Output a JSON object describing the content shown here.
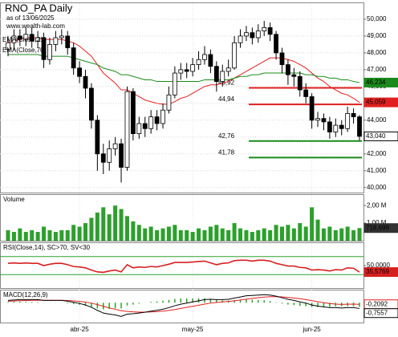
{
  "chart_data": {
    "type": "candlestick",
    "title": "RNO_PA Daily",
    "subtitle": "as of 13/06/2025",
    "source": "www.wealth-lab.com",
    "categories": [
      null,
      null,
      null,
      null,
      null,
      null,
      null,
      null,
      null,
      null,
      null,
      null,
      "abr-25",
      null,
      null,
      null,
      null,
      null,
      null,
      null,
      null,
      null,
      null,
      null,
      null,
      null,
      null,
      null,
      null,
      null,
      null,
      "may-25",
      null,
      null,
      null,
      null,
      null,
      null,
      null,
      null,
      null,
      null,
      null,
      null,
      null,
      null,
      null,
      null,
      null,
      null,
      null,
      "jun-25",
      null,
      null,
      null,
      null,
      null,
      null,
      null,
      null
    ],
    "open": [
      48.2,
      48.6,
      49.0,
      48.8,
      49.1,
      48.7,
      48.9,
      47.6,
      48.5,
      48.9,
      49.0,
      48.3,
      47.1,
      46.6,
      45.9,
      44.0,
      42.0,
      41.5,
      42.3,
      42.6,
      41.2,
      45.7,
      43.2,
      43.8,
      43.5,
      44.2,
      43.8,
      44.6,
      45.5,
      46.8,
      47.0,
      46.9,
      47.3,
      47.6,
      47.9,
      47.2,
      46.3,
      46.9,
      47.1,
      48.6,
      49.0,
      49.2,
      48.9,
      49.3,
      49.5,
      49.1,
      48.0,
      47.3,
      46.7,
      46.6,
      45.8,
      45.4,
      44.0,
      44.1,
      43.9,
      43.3,
      43.7,
      43.5,
      44.4,
      44.2
    ],
    "high": [
      49.0,
      49.4,
      49.4,
      49.5,
      49.5,
      49.3,
      49.2,
      48.9,
      49.3,
      49.4,
      49.3,
      48.6,
      47.5,
      47.0,
      46.2,
      44.3,
      42.6,
      42.8,
      43.0,
      42.9,
      46.0,
      45.9,
      44.2,
      44.2,
      44.6,
      44.6,
      45.0,
      46.0,
      47.2,
      47.4,
      47.4,
      47.7,
      48.1,
      48.4,
      48.2,
      47.5,
      47.3,
      47.6,
      49.0,
      49.4,
      49.6,
      49.5,
      49.7,
      49.9,
      49.8,
      49.3,
      48.3,
      47.6,
      47.1,
      46.9,
      46.2,
      45.6,
      44.5,
      44.4,
      44.2,
      44.1,
      44.0,
      44.8,
      44.7,
      44.3
    ],
    "low": [
      47.8,
      48.2,
      48.4,
      48.4,
      48.3,
      48.3,
      47.1,
      47.3,
      48.1,
      48.5,
      47.9,
      46.7,
      46.2,
      45.3,
      43.5,
      41.0,
      40.8,
      41.0,
      41.9,
      40.3,
      41.0,
      42.8,
      42.9,
      43.0,
      43.2,
      43.4,
      43.5,
      44.4,
      45.3,
      46.4,
      46.5,
      46.6,
      47.0,
      47.3,
      46.8,
      45.7,
      46.0,
      46.6,
      47.0,
      48.3,
      48.7,
      48.5,
      48.6,
      49.0,
      48.7,
      47.6,
      46.8,
      46.1,
      46.0,
      45.4,
      45.0,
      43.5,
      43.6,
      43.4,
      42.9,
      43.0,
      43.1,
      43.3,
      43.8,
      42.8
    ],
    "close": [
      48.6,
      49.0,
      48.8,
      49.1,
      48.7,
      48.9,
      47.6,
      48.5,
      48.9,
      49.0,
      48.3,
      47.1,
      46.6,
      45.9,
      44.0,
      42.0,
      41.5,
      42.3,
      42.6,
      41.2,
      45.7,
      43.2,
      43.8,
      43.5,
      44.2,
      43.8,
      44.6,
      45.5,
      46.8,
      47.0,
      46.9,
      47.3,
      47.6,
      47.9,
      47.2,
      46.3,
      46.9,
      47.1,
      48.6,
      49.0,
      49.2,
      48.9,
      49.3,
      49.5,
      49.1,
      48.0,
      47.3,
      46.7,
      46.6,
      45.8,
      45.4,
      44.0,
      44.1,
      43.9,
      43.3,
      43.7,
      43.5,
      44.4,
      44.2,
      43.04
    ],
    "close_label": "43,040",
    "up_color": "#ffffff",
    "down_color": "#000000",
    "ylim": [
      39.7,
      50.95
    ],
    "yticks": [
      {
        "value": 40,
        "label": "40,000"
      },
      {
        "value": 41,
        "label": "41,000"
      },
      {
        "value": 42,
        "label": "42,000"
      },
      {
        "value": 43,
        "label": "43,000"
      },
      {
        "value": 44,
        "label": "44,000"
      },
      {
        "value": 45,
        "label": "45,000"
      },
      {
        "value": 46,
        "label": "46,000"
      },
      {
        "value": 47,
        "label": "47,000"
      },
      {
        "value": 48,
        "label": "48,000"
      },
      {
        "value": 49,
        "label": "49,000"
      },
      {
        "value": 50,
        "label": "50,000"
      }
    ],
    "grid": true,
    "series": [
      {
        "name": "EMA(Close,21)",
        "color": "#e02020",
        "last_label": "45,059",
        "values": [
          48.6,
          48.7,
          48.8,
          48.9,
          48.9,
          48.9,
          48.8,
          48.8,
          48.8,
          48.8,
          48.7,
          48.6,
          48.4,
          48.1,
          47.8,
          47.3,
          46.8,
          46.5,
          46.2,
          45.8,
          45.8,
          45.6,
          45.4,
          45.2,
          45.1,
          45.0,
          44.95,
          44.95,
          45.1,
          45.3,
          45.4,
          45.6,
          45.8,
          46.0,
          46.1,
          46.1,
          46.2,
          46.3,
          46.5,
          46.7,
          46.9,
          47.1,
          47.3,
          47.5,
          47.7,
          47.7,
          47.7,
          47.6,
          47.5,
          47.3,
          47.1,
          46.8,
          46.5,
          46.3,
          46.0,
          45.8,
          45.6,
          45.5,
          45.3,
          45.059
        ]
      },
      {
        "name": "EMA(Close,70)",
        "color": "#1a8a1a",
        "last_label": "46,234",
        "values": [
          47.9,
          47.9,
          47.9,
          47.9,
          47.9,
          47.9,
          47.8,
          47.8,
          47.8,
          47.8,
          47.8,
          47.7,
          47.6,
          47.5,
          47.4,
          47.3,
          47.1,
          47.0,
          46.9,
          46.7,
          46.7,
          46.6,
          46.5,
          46.4,
          46.4,
          46.3,
          46.3,
          46.3,
          46.3,
          46.3,
          46.3,
          46.3,
          46.3,
          46.4,
          46.4,
          46.4,
          46.4,
          46.4,
          46.5,
          46.6,
          46.6,
          46.7,
          46.7,
          46.8,
          46.8,
          46.8,
          46.8,
          46.8,
          46.8,
          46.8,
          46.7,
          46.7,
          46.6,
          46.6,
          46.5,
          46.5,
          46.4,
          46.4,
          46.3,
          46.234
        ]
      }
    ],
    "levels": [
      {
        "value": 45.92,
        "label": "45,92",
        "color": "#e02020"
      },
      {
        "value": 44.94,
        "label": "44,94",
        "color": "#e02020"
      },
      {
        "value": 42.76,
        "label": "42,76",
        "color": "#1a8a1a"
      },
      {
        "value": 41.78,
        "label": "41,78",
        "color": "#1a8a1a"
      }
    ],
    "volume": {
      "title": "Volume",
      "color": "#2ca02c",
      "last_label": "718,699",
      "values": [
        0.6,
        0.5,
        0.7,
        0.5,
        0.6,
        0.5,
        0.8,
        0.6,
        0.5,
        0.6,
        0.6,
        0.9,
        0.8,
        1.0,
        1.3,
        1.6,
        1.9,
        1.5,
        2.0,
        1.8,
        1.4,
        1.1,
        0.9,
        0.7,
        0.8,
        0.6,
        0.7,
        0.8,
        0.9,
        0.6,
        0.6,
        0.5,
        0.7,
        0.6,
        0.8,
        0.9,
        0.7,
        0.6,
        1.0,
        0.7,
        0.6,
        0.5,
        0.6,
        0.7,
        0.6,
        0.9,
        0.8,
        0.9,
        0.7,
        1.0,
        0.8,
        1.9,
        1.2,
        0.7,
        0.8,
        0.6,
        0.7,
        0.8,
        0.6,
        0.718699
      ],
      "ylim": [
        0,
        2.6
      ],
      "yticks": [
        {
          "value": 1,
          "label": "1,00 M"
        },
        {
          "value": 2,
          "label": "2,00 M"
        }
      ]
    },
    "rsi": {
      "title": "RSI(Close,14), SC>70, SV<30",
      "color": "#d62020",
      "last_label": "35,5769",
      "values": [
        55,
        56,
        55,
        56,
        55,
        55,
        50,
        53,
        55,
        55,
        52,
        48,
        47,
        45,
        40,
        36,
        35,
        38,
        40,
        36,
        52,
        45,
        47,
        46,
        48,
        47,
        50,
        53,
        57,
        57,
        57,
        58,
        59,
        60,
        56,
        52,
        55,
        56,
        61,
        62,
        62,
        60,
        62,
        62,
        60,
        55,
        52,
        49,
        49,
        46,
        45,
        40,
        41,
        40,
        38,
        41,
        40,
        45,
        44,
        35.5769
      ],
      "ylim": [
        0,
        100
      ],
      "yticks": [
        {
          "value": 50,
          "label": "50,0000"
        }
      ],
      "levels": [
        70,
        30
      ],
      "level_color": "#2ca02c"
    },
    "macd": {
      "title": "MACD(12,26,9)",
      "ylim": [
        -2.6,
        1.6
      ],
      "line": {
        "color": "#000000",
        "last_label": "-0,7557",
        "values": [
          0.3,
          0.35,
          0.4,
          0.4,
          0.4,
          0.4,
          0.3,
          0.3,
          0.3,
          0.3,
          0.2,
          0.05,
          -0.1,
          -0.3,
          -0.6,
          -1.0,
          -1.35,
          -1.5,
          -1.6,
          -1.8,
          -1.5,
          -1.45,
          -1.35,
          -1.25,
          -1.1,
          -1.0,
          -0.85,
          -0.65,
          -0.4,
          -0.2,
          -0.05,
          0.1,
          0.25,
          0.4,
          0.45,
          0.4,
          0.4,
          0.45,
          0.6,
          0.75,
          0.9,
          0.95,
          1.0,
          1.05,
          1.0,
          0.85,
          0.65,
          0.45,
          0.3,
          0.1,
          -0.05,
          -0.3,
          -0.45,
          -0.55,
          -0.65,
          -0.65,
          -0.7,
          -0.65,
          -0.65,
          -0.7557
        ]
      },
      "signal": {
        "color": "#e02020",
        "last_label": "-0,2092",
        "values": [
          0.2,
          0.22,
          0.26,
          0.29,
          0.31,
          0.33,
          0.32,
          0.32,
          0.32,
          0.31,
          0.29,
          0.24,
          0.17,
          0.08,
          -0.06,
          -0.25,
          -0.47,
          -0.68,
          -0.86,
          -1.05,
          -1.14,
          -1.2,
          -1.23,
          -1.24,
          -1.21,
          -1.17,
          -1.1,
          -1.01,
          -0.89,
          -0.75,
          -0.61,
          -0.47,
          -0.33,
          -0.19,
          -0.06,
          0.03,
          0.1,
          0.17,
          0.25,
          0.35,
          0.46,
          0.56,
          0.65,
          0.73,
          0.78,
          0.79,
          0.76,
          0.7,
          0.62,
          0.52,
          0.41,
          0.27,
          0.13,
          0.0,
          -0.11,
          -0.18,
          -0.23,
          -0.2,
          -0.19,
          -0.2092
        ]
      },
      "histogram": {
        "color": "#2ca02c",
        "values": [
          0.1,
          0.13,
          0.14,
          0.11,
          0.09,
          0.07,
          -0.02,
          -0.02,
          -0.02,
          -0.01,
          -0.09,
          -0.19,
          -0.27,
          -0.38,
          -0.54,
          -0.75,
          -0.88,
          -0.82,
          -0.74,
          -0.75,
          -0.36,
          -0.25,
          -0.12,
          -0.01,
          0.11,
          0.17,
          0.25,
          0.36,
          0.49,
          0.55,
          0.56,
          0.57,
          0.58,
          0.59,
          0.51,
          0.37,
          0.3,
          0.28,
          0.35,
          0.4,
          0.44,
          0.39,
          0.35,
          0.32,
          0.22,
          0.06,
          -0.11,
          -0.25,
          -0.32,
          -0.42,
          -0.46,
          -0.57,
          -0.58,
          -0.55,
          -0.54,
          -0.47,
          -0.47,
          -0.45,
          -0.46,
          -0.5465
        ]
      }
    }
  }
}
